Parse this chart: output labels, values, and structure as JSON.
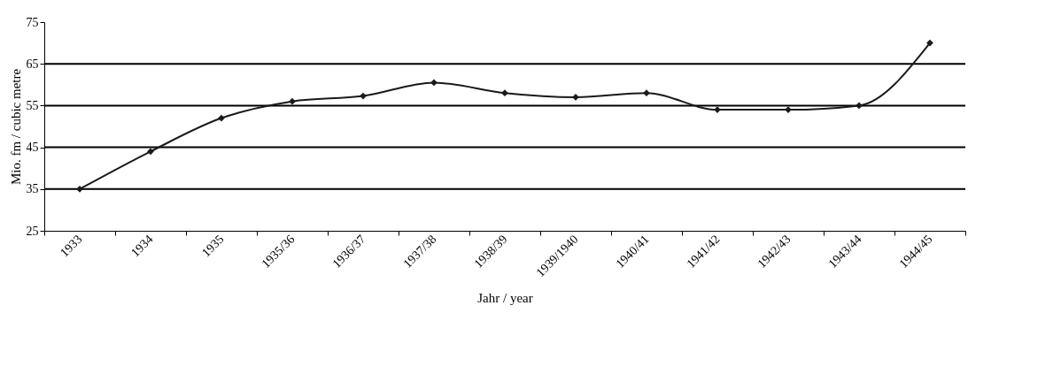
{
  "chart_data": {
    "type": "line",
    "xlabel": "Jahr / year",
    "ylabel": "Mio. fm / cubic metre",
    "categories": [
      "1933",
      "1934",
      "1935",
      "1935/36",
      "1936/37",
      "1937/38",
      "1938/39",
      "1939/1940",
      "1940/41",
      "1941/42",
      "1942/43",
      "1943/44",
      "1944/45"
    ],
    "series": [
      {
        "color": "#1a1a1a",
        "values": [
          35,
          44,
          52,
          56,
          57.3,
          60.5,
          58,
          57,
          58,
          54,
          54,
          55,
          70
        ]
      }
    ],
    "ylim": [
      25,
      75
    ],
    "yticks": [
      25,
      35,
      45,
      55,
      65,
      75
    ],
    "grid": "y",
    "marker": "diamond",
    "line_style": "solid"
  }
}
